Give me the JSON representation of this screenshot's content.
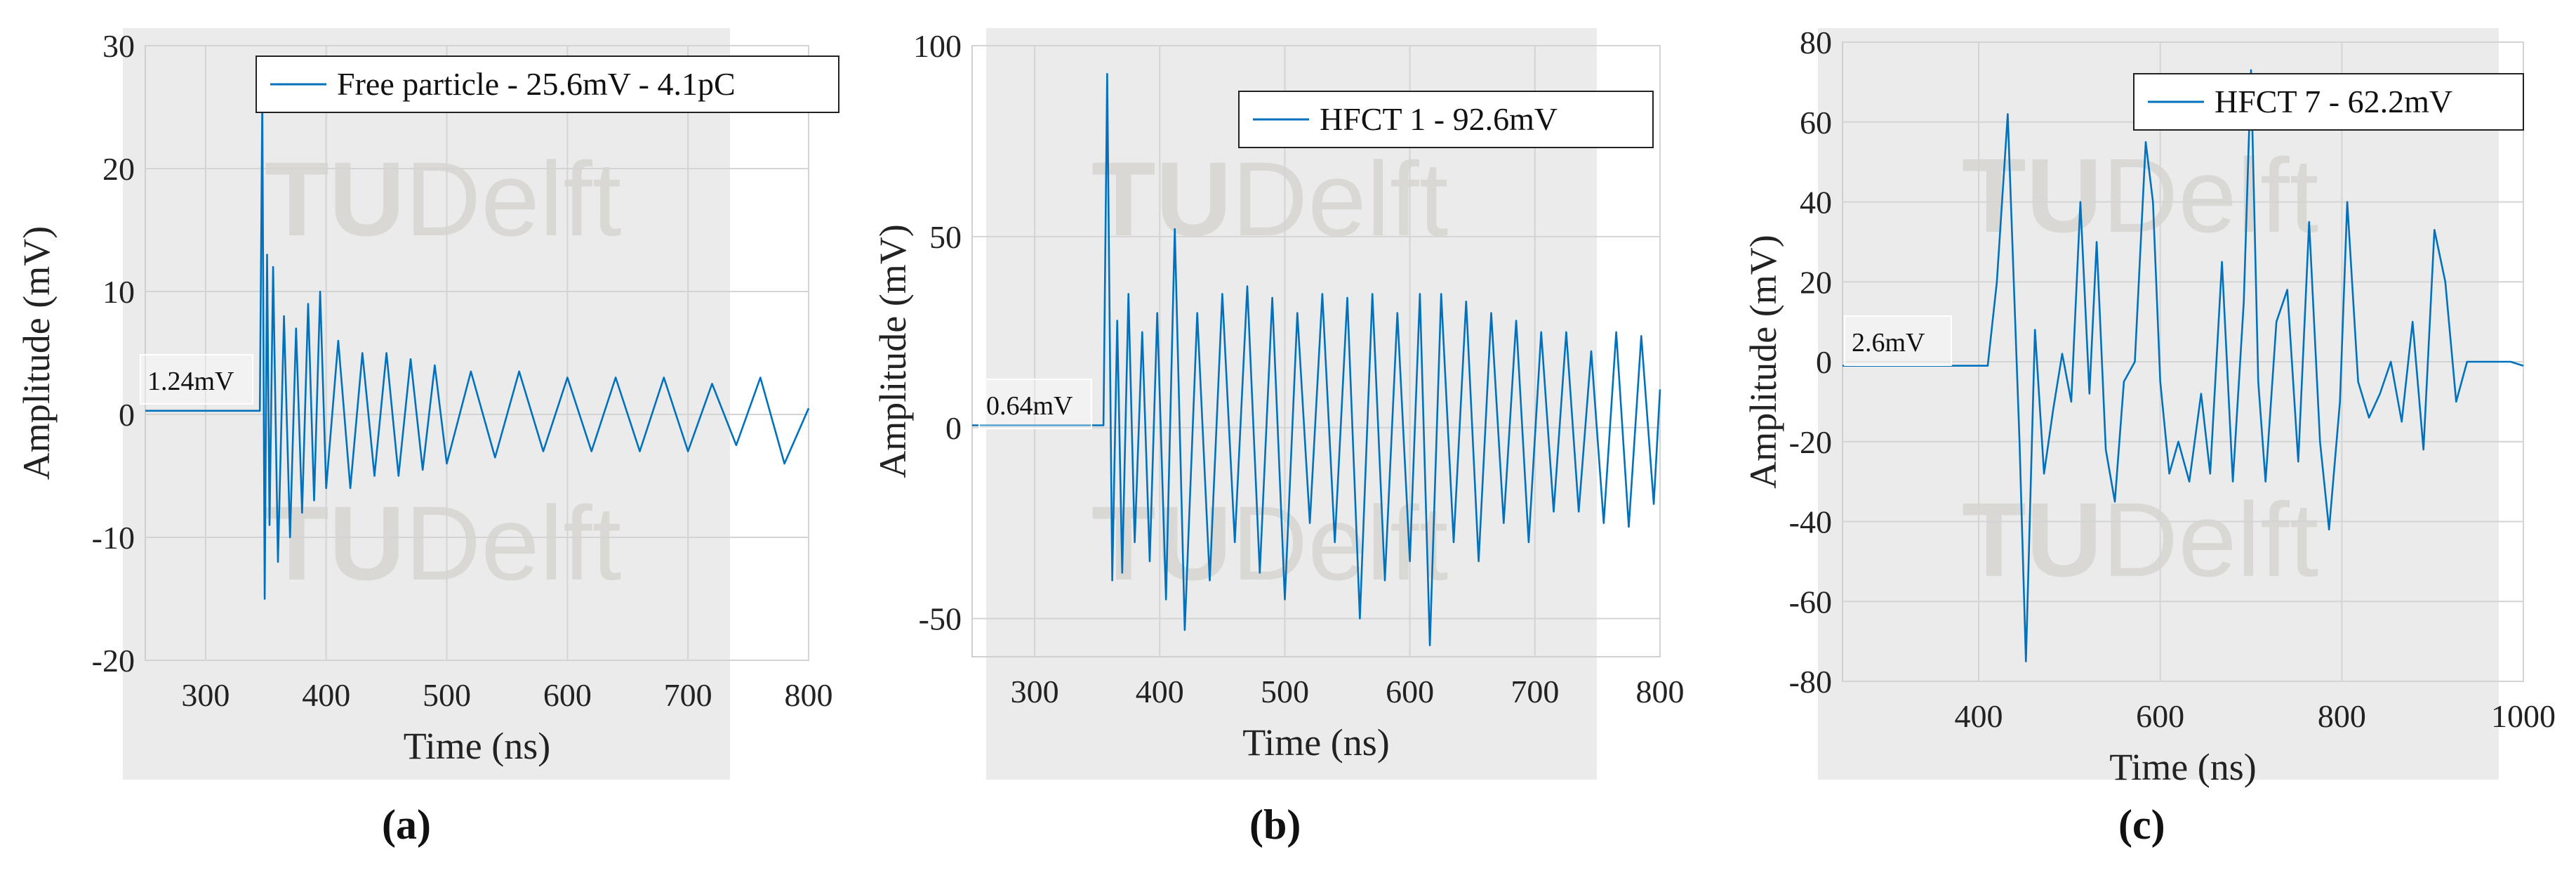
{
  "chart_data": [
    {
      "type": "line",
      "panel": "(a)",
      "xlabel": "Time (ns)",
      "ylabel": "Amplitude (mV)",
      "xlim": [
        250,
        800
      ],
      "ylim": [
        -20,
        30
      ],
      "xticks": [
        300,
        400,
        500,
        600,
        700,
        800
      ],
      "yticks": [
        -20,
        -10,
        0,
        10,
        20,
        30
      ],
      "grid": true,
      "legend_position": "top-right",
      "annotation": "1.24mV",
      "watermark": "TUDelft",
      "series": [
        {
          "name": "Free particle - 25.6mV - 4.1pC",
          "color": "#0072BD",
          "x": [
            250,
            345,
            347,
            349,
            351,
            353,
            356,
            360,
            365,
            370,
            375,
            380,
            385,
            390,
            395,
            400,
            410,
            420,
            430,
            440,
            450,
            460,
            470,
            480,
            490,
            500,
            520,
            540,
            560,
            580,
            600,
            620,
            640,
            660,
            680,
            700,
            720,
            740,
            760,
            780,
            800
          ],
          "y": [
            0.3,
            0.3,
            25.6,
            -15,
            13,
            -9,
            12,
            -12,
            8,
            -10,
            7,
            -8,
            9,
            -7,
            10,
            -6,
            6,
            -6,
            5,
            -5,
            5,
            -5,
            4.5,
            -4.5,
            4,
            -4,
            3.5,
            -3.5,
            3.5,
            -3,
            3,
            -3,
            3,
            -3,
            3,
            -3,
            2.5,
            -2.5,
            3,
            -4,
            0.5
          ]
        }
      ]
    },
    {
      "type": "line",
      "panel": "(b)",
      "xlabel": "Time (ns)",
      "ylabel": "Amplitude (mV)",
      "xlim": [
        250,
        800
      ],
      "ylim": [
        -60,
        100
      ],
      "xticks": [
        300,
        400,
        500,
        600,
        700,
        800
      ],
      "yticks": [
        -50,
        0,
        50,
        100
      ],
      "grid": true,
      "legend_position": "top-right",
      "annotation": "0.64mV",
      "watermark": "TUDelft",
      "series": [
        {
          "name": "HFCT 1 - 92.6mV",
          "color": "#0072BD",
          "x": [
            250,
            355,
            358,
            362,
            366,
            370,
            375,
            380,
            386,
            392,
            398,
            405,
            412,
            420,
            430,
            440,
            450,
            460,
            470,
            480,
            490,
            500,
            510,
            520,
            530,
            540,
            550,
            560,
            570,
            580,
            590,
            600,
            608,
            616,
            625,
            635,
            645,
            655,
            665,
            675,
            685,
            695,
            705,
            715,
            725,
            735,
            745,
            755,
            765,
            775,
            785,
            795,
            800
          ],
          "y": [
            0.6,
            0.6,
            92.6,
            -40,
            28,
            -38,
            35,
            -30,
            25,
            -35,
            30,
            -45,
            52,
            -53,
            30,
            -40,
            35,
            -30,
            37,
            -38,
            34,
            -45,
            30,
            -25,
            35,
            -30,
            34,
            -50,
            35,
            -40,
            30,
            -35,
            35,
            -57,
            35,
            -30,
            33,
            -35,
            30,
            -25,
            28,
            -30,
            25,
            -22,
            25,
            -22,
            20,
            -25,
            25,
            -26,
            24,
            -20,
            10
          ]
        }
      ]
    },
    {
      "type": "line",
      "panel": "(c)",
      "xlabel": "Time (ns)",
      "ylabel": "Amplitude (mV)",
      "xlim": [
        250,
        1000
      ],
      "ylim": [
        -80,
        80
      ],
      "xticks": [
        400,
        600,
        800,
        1000
      ],
      "yticks": [
        -80,
        -60,
        -40,
        -20,
        0,
        20,
        40,
        60,
        80
      ],
      "grid": true,
      "legend_position": "top-right",
      "annotation": "2.6mV",
      "watermark": "TUDelft",
      "series": [
        {
          "name": "HFCT 7 - 62.2mV",
          "color": "#0072BD",
          "x": [
            250,
            410,
            420,
            432,
            445,
            452,
            462,
            472,
            482,
            492,
            502,
            512,
            522,
            530,
            540,
            550,
            560,
            572,
            584,
            592,
            600,
            610,
            620,
            632,
            645,
            655,
            668,
            680,
            692,
            700,
            708,
            716,
            728,
            740,
            752,
            764,
            776,
            786,
            798,
            806,
            818,
            830,
            842,
            854,
            866,
            878,
            890,
            902,
            914,
            926,
            938,
            950,
            962,
            974,
            986,
            1000
          ],
          "y": [
            -1,
            -1,
            20,
            62,
            -20,
            -75,
            8,
            -28,
            -12,
            2,
            -10,
            40,
            -8,
            30,
            -22,
            -35,
            -5,
            0,
            55,
            40,
            -5,
            -28,
            -20,
            -30,
            -8,
            -28,
            25,
            -30,
            15,
            73,
            -5,
            -30,
            10,
            18,
            -25,
            35,
            -20,
            -42,
            -10,
            40,
            -5,
            -14,
            -8,
            0,
            -15,
            10,
            -22,
            33,
            20,
            -10,
            0,
            0,
            0,
            0,
            0,
            -1
          ]
        }
      ]
    }
  ],
  "captions": [
    "(a)",
    "(b)",
    "(c)"
  ],
  "wm_parts": [
    "TU",
    "Delft"
  ]
}
